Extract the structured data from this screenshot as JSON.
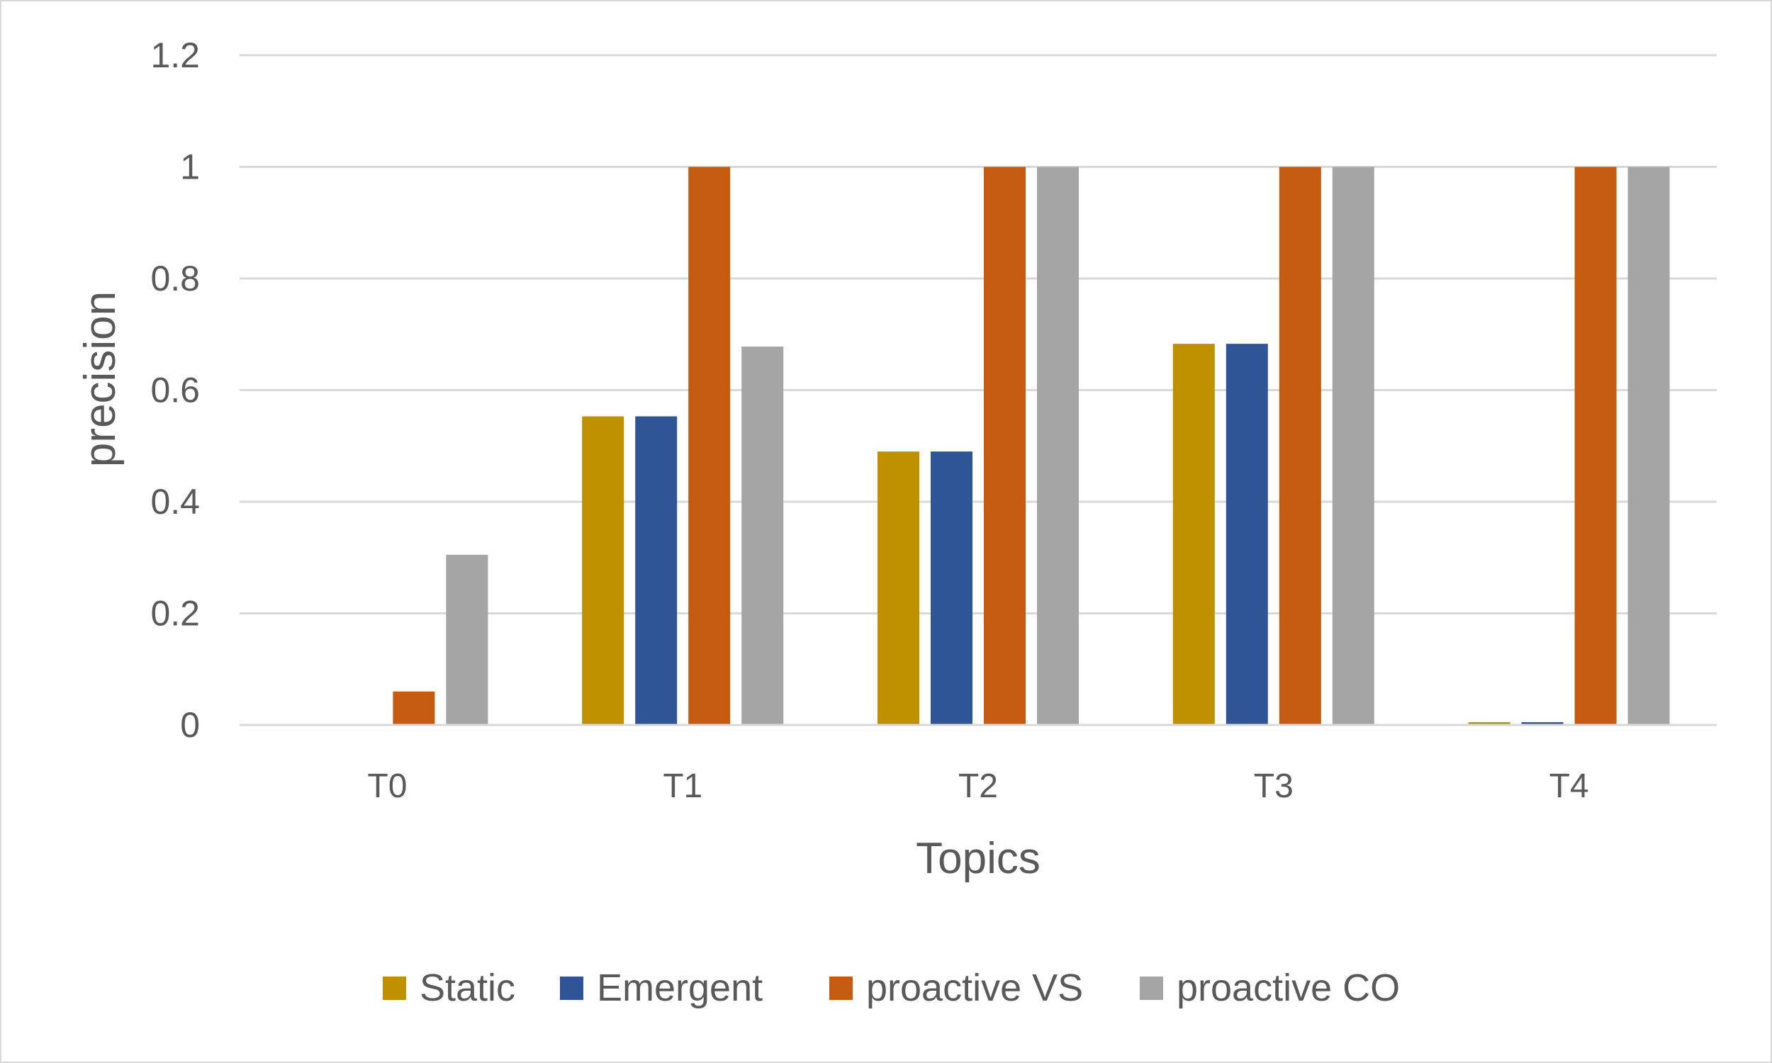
{
  "chart_data": {
    "type": "bar",
    "title": "",
    "xlabel": "Topics",
    "ylabel": "precision",
    "ylim": [
      0,
      1.2
    ],
    "yticks": [
      {
        "value": 0,
        "label": "0"
      },
      {
        "value": 0.2,
        "label": "0.2"
      },
      {
        "value": 0.4,
        "label": "0.4"
      },
      {
        "value": 0.6,
        "label": "0.6"
      },
      {
        "value": 0.8,
        "label": "0.8"
      },
      {
        "value": 1,
        "label": "1"
      },
      {
        "value": 1.2,
        "label": "1.2"
      }
    ],
    "grid": true,
    "legend_position": "bottom",
    "categories": [
      "T0",
      "T1",
      "T2",
      "T3",
      "T4"
    ],
    "series": [
      {
        "name": "Static",
        "color": "#BF9000",
        "values": [
          0,
          0.553,
          0.49,
          0.683,
          0.005
        ]
      },
      {
        "name": "Emergent",
        "color": "#2F5597",
        "values": [
          0,
          0.553,
          0.49,
          0.683,
          0.005
        ]
      },
      {
        "name": "proactive VS",
        "color": "#C55A11",
        "values": [
          0.06,
          1,
          1,
          1,
          1
        ]
      },
      {
        "name": "proactive CO",
        "color": "#A5A5A5",
        "values": [
          0.305,
          0.678,
          1,
          1,
          1
        ]
      }
    ]
  }
}
